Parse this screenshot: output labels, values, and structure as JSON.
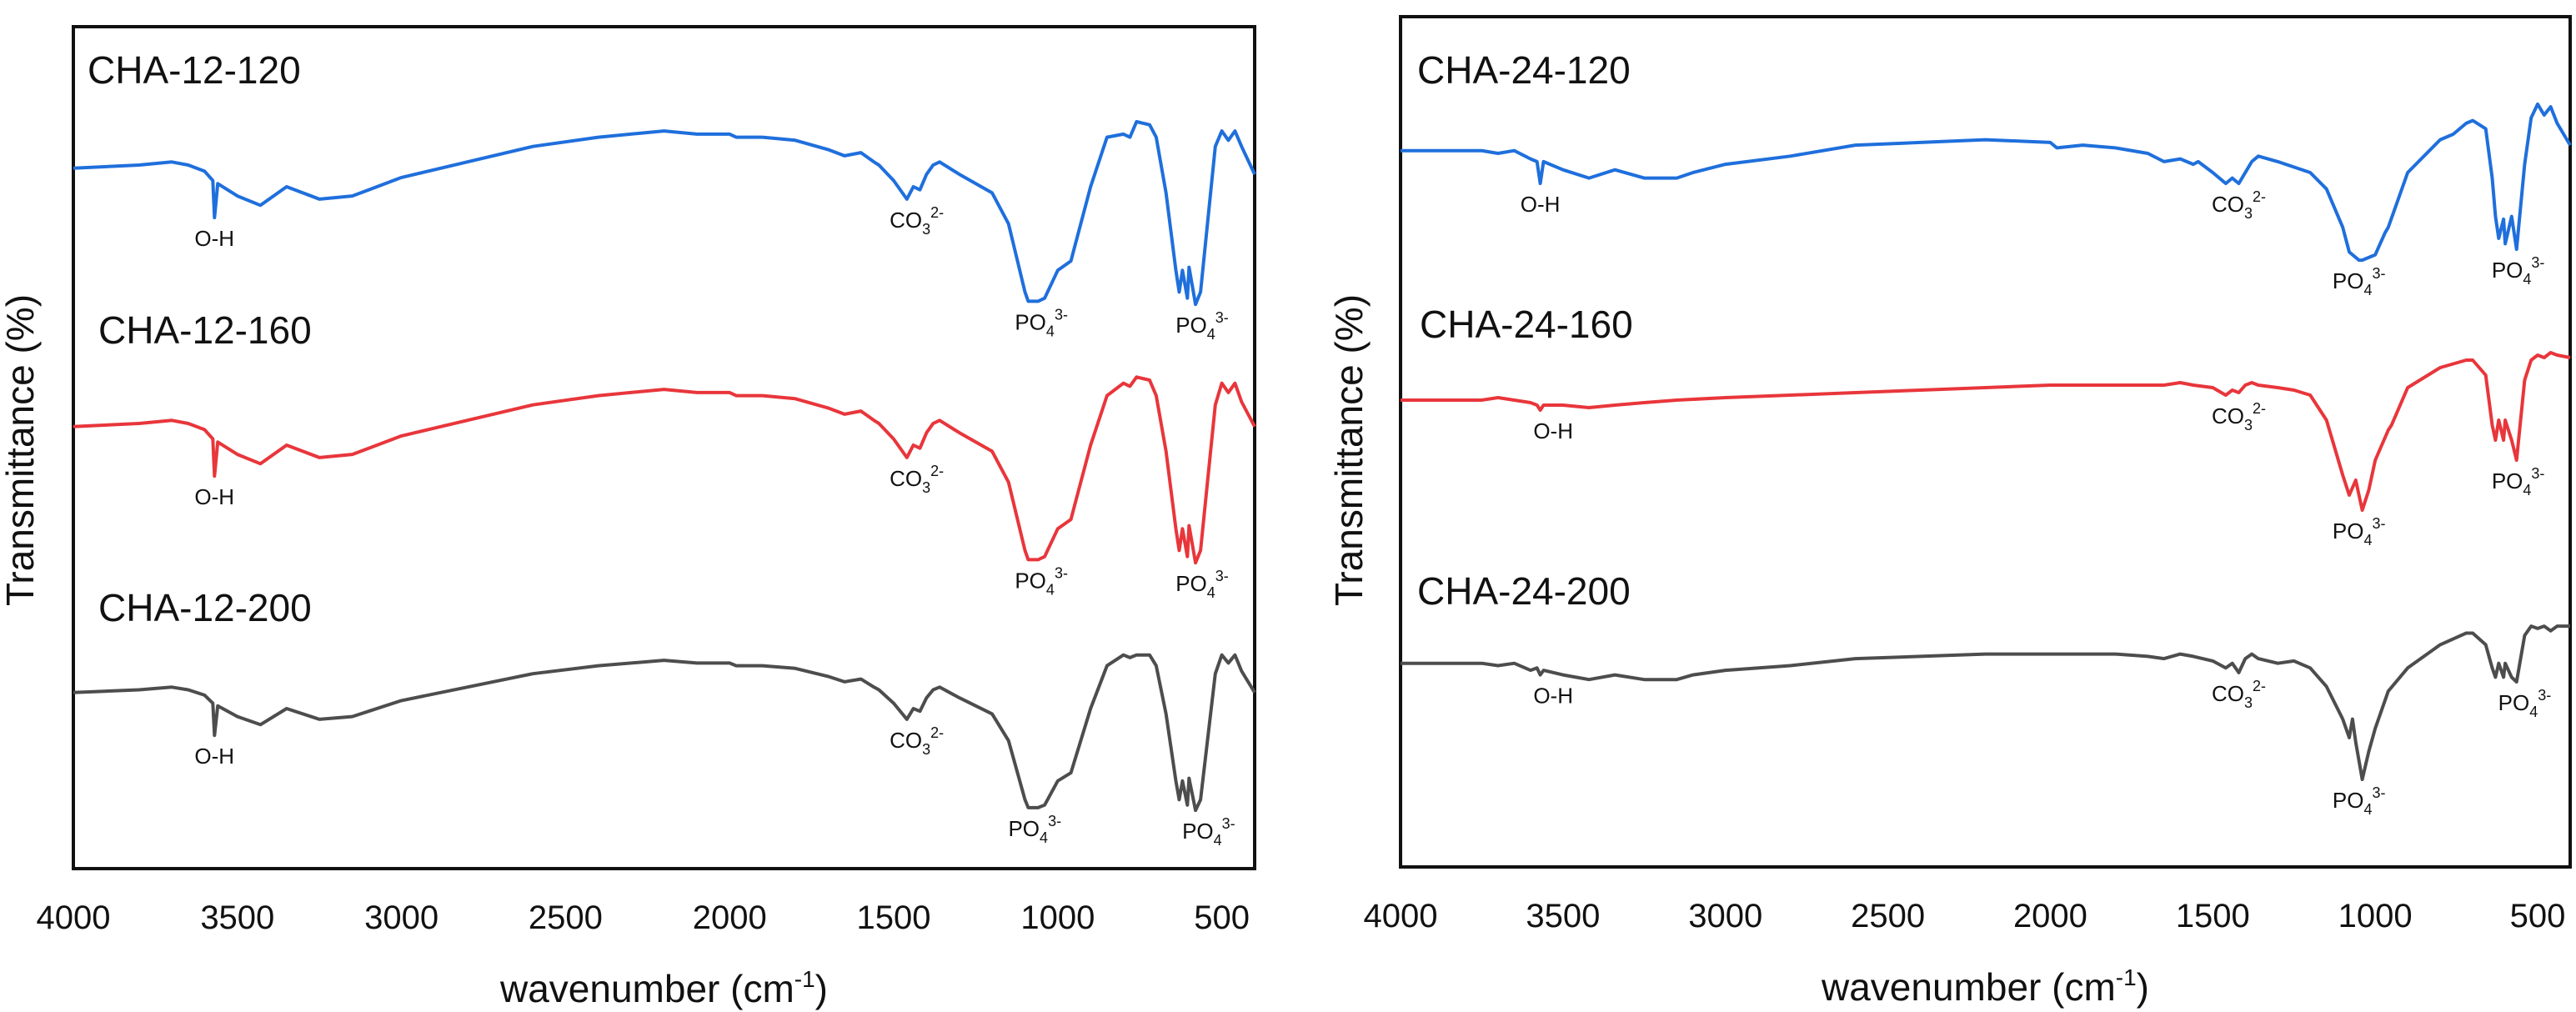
{
  "figure": {
    "ylabel": "Transmittance (%)",
    "xlabel": "wavenumber (cm",
    "xlabel_sup": "-1",
    "xlabel_close": ")"
  },
  "chart_data": [
    {
      "type": "line",
      "panel": "left",
      "title": "",
      "xlabel": "wavenumber (cm-1)",
      "ylabel": "Transmittance (%)",
      "xlim": [
        4000,
        400
      ],
      "x_reversed": true,
      "xticks": [
        4000,
        3500,
        3000,
        2500,
        2000,
        1500,
        1000,
        500
      ],
      "yticks": [],
      "grid": false,
      "legend": "inline-labels",
      "series": [
        {
          "name": "CHA-12-120",
          "color": "#1f6fdc",
          "x": [
            4000,
            3800,
            3700,
            3650,
            3600,
            3575,
            3570,
            3560,
            3500,
            3430,
            3350,
            3250,
            3150,
            3100,
            3000,
            2800,
            2600,
            2400,
            2200,
            2100,
            2000,
            1980,
            1900,
            1800,
            1700,
            1650,
            1600,
            1560,
            1545,
            1500,
            1460,
            1440,
            1420,
            1400,
            1380,
            1360,
            1300,
            1200,
            1150,
            1100,
            1090,
            1060,
            1040,
            1000,
            960,
            950,
            900,
            850,
            800,
            780,
            760,
            720,
            700,
            670,
            640,
            630,
            620,
            605,
            600,
            580,
            565,
            520,
            500,
            480,
            460,
            440,
            400
          ],
          "y": [
            78,
            79,
            80,
            79,
            77,
            74,
            62,
            73,
            69,
            66,
            72,
            68,
            69,
            71,
            75,
            80,
            85,
            88,
            90,
            89,
            89,
            88,
            88,
            87,
            84,
            82,
            83,
            80,
            79,
            74,
            68,
            72,
            71,
            76,
            79,
            80,
            76,
            70,
            60,
            38,
            35,
            35,
            36,
            45,
            48,
            52,
            72,
            88,
            89,
            88,
            93,
            92,
            88,
            70,
            45,
            38,
            45,
            36,
            46,
            34,
            38,
            85,
            90,
            87,
            90,
            85,
            76
          ]
        },
        {
          "name": "CHA-12-160",
          "color": "#e8363b",
          "x": [
            4000,
            3800,
            3700,
            3650,
            3600,
            3575,
            3570,
            3560,
            3500,
            3430,
            3350,
            3250,
            3150,
            3100,
            3000,
            2800,
            2600,
            2400,
            2200,
            2100,
            2000,
            1980,
            1900,
            1800,
            1700,
            1650,
            1600,
            1560,
            1545,
            1500,
            1460,
            1440,
            1420,
            1400,
            1380,
            1360,
            1300,
            1200,
            1150,
            1100,
            1090,
            1060,
            1040,
            1000,
            960,
            950,
            900,
            850,
            800,
            780,
            760,
            720,
            700,
            670,
            640,
            630,
            620,
            605,
            600,
            580,
            565,
            520,
            500,
            480,
            460,
            440,
            400
          ],
          "y": [
            78,
            79,
            80,
            79,
            77,
            74,
            62,
            73,
            69,
            66,
            72,
            68,
            69,
            71,
            75,
            80,
            85,
            88,
            90,
            89,
            89,
            88,
            88,
            87,
            84,
            82,
            83,
            80,
            79,
            74,
            68,
            72,
            71,
            76,
            79,
            80,
            76,
            70,
            60,
            38,
            35,
            35,
            36,
            45,
            48,
            52,
            72,
            88,
            92,
            91,
            94,
            93,
            88,
            70,
            45,
            38,
            45,
            36,
            46,
            34,
            38,
            85,
            92,
            89,
            92,
            86,
            78
          ]
        },
        {
          "name": "CHA-12-200",
          "color": "#4d4d4d",
          "x": [
            4000,
            3800,
            3700,
            3650,
            3600,
            3575,
            3570,
            3560,
            3500,
            3430,
            3350,
            3250,
            3150,
            3100,
            3000,
            2800,
            2600,
            2400,
            2200,
            2100,
            2000,
            1980,
            1900,
            1800,
            1700,
            1650,
            1600,
            1560,
            1545,
            1500,
            1460,
            1440,
            1420,
            1400,
            1380,
            1360,
            1300,
            1200,
            1150,
            1100,
            1090,
            1060,
            1040,
            1000,
            960,
            950,
            900,
            850,
            800,
            780,
            760,
            720,
            700,
            670,
            640,
            630,
            620,
            605,
            600,
            580,
            565,
            520,
            500,
            480,
            460,
            440,
            400
          ],
          "y": [
            78,
            79,
            80,
            79,
            77,
            74,
            62,
            73,
            69,
            66,
            72,
            68,
            69,
            71,
            75,
            80,
            85,
            88,
            90,
            89,
            89,
            88,
            88,
            87,
            84,
            82,
            83,
            80,
            79,
            74,
            68,
            72,
            71,
            76,
            79,
            80,
            76,
            70,
            60,
            38,
            35,
            35,
            36,
            45,
            48,
            52,
            72,
            88,
            92,
            91,
            92,
            92,
            88,
            70,
            45,
            38,
            45,
            36,
            46,
            34,
            38,
            85,
            92,
            89,
            92,
            86,
            78
          ]
        }
      ],
      "annotations": [
        {
          "series": "CHA-12-120",
          "text": "O-H",
          "x": 3570
        },
        {
          "series": "CHA-12-120",
          "text": "CO3",
          "sub": "3",
          "sup": "2-",
          "x": 1430
        },
        {
          "series": "CHA-12-120",
          "text": "PO4",
          "sub": "4",
          "sup": "3-",
          "x": 1050
        },
        {
          "series": "CHA-12-120",
          "text": "PO4",
          "sub": "4",
          "sup": "3-",
          "x": 560
        },
        {
          "series": "CHA-12-160",
          "text": "O-H",
          "x": 3570
        },
        {
          "series": "CHA-12-160",
          "text": "CO3",
          "sub": "3",
          "sup": "2-",
          "x": 1430
        },
        {
          "series": "CHA-12-160",
          "text": "PO4",
          "sub": "4",
          "sup": "3-",
          "x": 1050
        },
        {
          "series": "CHA-12-160",
          "text": "PO4",
          "sub": "4",
          "sup": "3-",
          "x": 560
        },
        {
          "series": "CHA-12-200",
          "text": "O-H",
          "x": 3570
        },
        {
          "series": "CHA-12-200",
          "text": "CO3",
          "sub": "3",
          "sup": "2-",
          "x": 1430
        },
        {
          "series": "CHA-12-200",
          "text": "PO4",
          "sub": "4",
          "sup": "3-",
          "x": 1070
        },
        {
          "series": "CHA-12-200",
          "text": "PO4",
          "sub": "4",
          "sup": "3-",
          "x": 540
        }
      ]
    },
    {
      "type": "line",
      "panel": "right",
      "title": "",
      "xlabel": "wavenumber (cm-1)",
      "ylabel": "Transmittance (%)",
      "xlim": [
        4000,
        400
      ],
      "x_reversed": true,
      "xticks": [
        4000,
        3500,
        3000,
        2500,
        2000,
        1500,
        1000,
        500
      ],
      "yticks": [],
      "grid": false,
      "legend": "inline-labels",
      "series": [
        {
          "name": "CHA-24-120",
          "color": "#1f6fdc",
          "x": [
            4000,
            3750,
            3700,
            3650,
            3600,
            3580,
            3570,
            3560,
            3500,
            3420,
            3340,
            3250,
            3150,
            3100,
            3000,
            2800,
            2600,
            2400,
            2200,
            2000,
            1980,
            1900,
            1800,
            1700,
            1650,
            1600,
            1560,
            1545,
            1500,
            1460,
            1440,
            1420,
            1400,
            1380,
            1360,
            1300,
            1200,
            1150,
            1100,
            1080,
            1050,
            1040,
            1000,
            970,
            960,
            900,
            800,
            760,
            720,
            700,
            660,
            640,
            630,
            620,
            605,
            600,
            580,
            565,
            540,
            520,
            500,
            480,
            460,
            440,
            400
          ],
          "y": [
            80,
            80,
            79,
            80,
            77,
            76,
            68,
            76,
            73,
            70,
            73,
            70,
            70,
            72,
            75,
            78,
            82,
            83,
            84,
            83,
            81,
            82,
            81,
            79,
            76,
            77,
            75,
            76,
            72,
            68,
            70,
            68,
            72,
            76,
            78,
            76,
            72,
            66,
            52,
            43,
            40,
            40,
            42,
            50,
            52,
            72,
            84,
            86,
            90,
            91,
            88,
            70,
            56,
            48,
            55,
            46,
            56,
            44,
            75,
            92,
            97,
            93,
            96,
            90,
            82
          ]
        },
        {
          "name": "CHA-24-160",
          "color": "#e8363b",
          "x": [
            4000,
            3750,
            3700,
            3650,
            3600,
            3580,
            3570,
            3560,
            3500,
            3420,
            3340,
            3250,
            3150,
            3000,
            2800,
            2600,
            2400,
            2200,
            2000,
            1800,
            1700,
            1650,
            1600,
            1560,
            1500,
            1460,
            1440,
            1420,
            1400,
            1380,
            1360,
            1300,
            1250,
            1200,
            1150,
            1100,
            1080,
            1060,
            1050,
            1040,
            1020,
            1000,
            960,
            950,
            900,
            800,
            720,
            700,
            660,
            640,
            630,
            620,
            605,
            600,
            580,
            565,
            540,
            520,
            500,
            480,
            460,
            440,
            400
          ],
          "y": [
            80,
            80,
            81,
            80,
            79,
            78,
            76,
            78,
            78,
            77,
            78,
            79,
            80,
            81,
            82,
            83,
            84,
            85,
            86,
            86,
            86,
            86,
            87,
            86,
            85,
            82,
            84,
            83,
            86,
            87,
            86,
            85,
            84,
            82,
            72,
            50,
            42,
            48,
            42,
            36,
            44,
            56,
            68,
            70,
            85,
            93,
            96,
            96,
            90,
            70,
            64,
            72,
            64,
            72,
            64,
            56,
            88,
            96,
            98,
            97,
            99,
            98,
            97
          ]
        },
        {
          "name": "CHA-24-200",
          "color": "#4d4d4d",
          "x": [
            4000,
            3750,
            3700,
            3650,
            3600,
            3580,
            3570,
            3560,
            3500,
            3420,
            3340,
            3250,
            3150,
            3100,
            3000,
            2800,
            2600,
            2400,
            2200,
            2000,
            1800,
            1700,
            1650,
            1600,
            1560,
            1500,
            1460,
            1440,
            1420,
            1400,
            1380,
            1360,
            1300,
            1250,
            1200,
            1150,
            1100,
            1080,
            1070,
            1060,
            1050,
            1040,
            1020,
            1000,
            960,
            900,
            800,
            720,
            700,
            660,
            640,
            630,
            620,
            605,
            600,
            580,
            565,
            540,
            520,
            500,
            480,
            460,
            440,
            400
          ],
          "y": [
            80,
            80,
            79,
            80,
            77,
            78,
            75,
            77,
            75,
            73,
            75,
            73,
            73,
            75,
            77,
            79,
            82,
            83,
            84,
            84,
            84,
            83,
            82,
            84,
            83,
            81,
            78,
            80,
            76,
            82,
            84,
            82,
            80,
            81,
            78,
            70,
            56,
            48,
            56,
            46,
            38,
            30,
            42,
            52,
            68,
            78,
            88,
            93,
            93,
            88,
            78,
            74,
            80,
            74,
            80,
            74,
            72,
            92,
            96,
            95,
            96,
            94,
            96,
            96
          ]
        }
      ],
      "annotations": [
        {
          "series": "CHA-24-120",
          "text": "O-H",
          "x": 3570
        },
        {
          "series": "CHA-24-120",
          "text": "CO3",
          "sub": "3",
          "sup": "2-",
          "x": 1420
        },
        {
          "series": "CHA-24-120",
          "text": "PO4",
          "sub": "4",
          "sup": "3-",
          "x": 1050
        },
        {
          "series": "CHA-24-120",
          "text": "PO4",
          "sub": "4",
          "sup": "3-",
          "x": 560
        },
        {
          "series": "CHA-24-160",
          "text": "O-H",
          "x": 3530
        },
        {
          "series": "CHA-24-160",
          "text": "CO3",
          "sub": "3",
          "sup": "2-",
          "x": 1420
        },
        {
          "series": "CHA-24-160",
          "text": "PO4",
          "sub": "4",
          "sup": "3-",
          "x": 1050
        },
        {
          "series": "CHA-24-160",
          "text": "PO4",
          "sub": "4",
          "sup": "3-",
          "x": 560
        },
        {
          "series": "CHA-24-200",
          "text": "O-H",
          "x": 3530
        },
        {
          "series": "CHA-24-200",
          "text": "CO3",
          "sub": "3",
          "sup": "2-",
          "x": 1420
        },
        {
          "series": "CHA-24-200",
          "text": "PO4",
          "sub": "4",
          "sup": "3-",
          "x": 1050
        },
        {
          "series": "CHA-24-200",
          "text": "PO4",
          "sub": "4",
          "sup": "3-",
          "x": 540
        }
      ]
    }
  ]
}
